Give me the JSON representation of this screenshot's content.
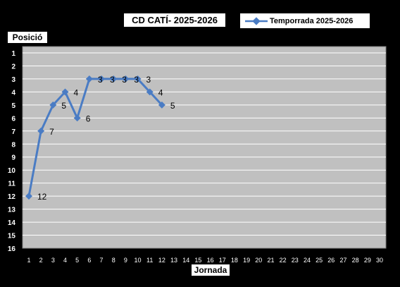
{
  "chart_data": {
    "type": "line",
    "title": "CD CATÍ- 2025-2026",
    "ylabel": "Posició",
    "xlabel": "Jornada",
    "x": [
      1,
      2,
      3,
      4,
      5,
      6,
      7,
      8,
      9,
      10,
      11,
      12
    ],
    "x_ticks": [
      1,
      2,
      3,
      4,
      5,
      6,
      7,
      8,
      9,
      10,
      11,
      12,
      13,
      14,
      15,
      16,
      17,
      18,
      19,
      20,
      21,
      22,
      23,
      24,
      25,
      26,
      27,
      28,
      29,
      30
    ],
    "y_ticks": [
      1,
      2,
      3,
      4,
      5,
      6,
      7,
      8,
      9,
      10,
      11,
      12,
      13,
      14,
      15,
      16
    ],
    "xlim": [
      1,
      30
    ],
    "ylim": [
      1,
      16
    ],
    "y_inverted": true,
    "grid": true,
    "legend_position": "top-right",
    "series": [
      {
        "name": "Temporrada 2025-2026",
        "color": "#4a7cc4",
        "values": [
          12,
          7,
          5,
          4,
          6,
          3,
          3,
          3,
          3,
          3,
          4,
          5
        ],
        "data_labels": [
          "12",
          "7",
          "5",
          "4",
          "6",
          "3",
          "3",
          "3",
          "3",
          "3",
          "4",
          "5"
        ]
      }
    ],
    "colors": {
      "background": "#000000",
      "plot_area": "#c0c0c0",
      "gridline": "#ffffff",
      "axis_text": "#ffffff",
      "data_label": "#000000"
    }
  }
}
